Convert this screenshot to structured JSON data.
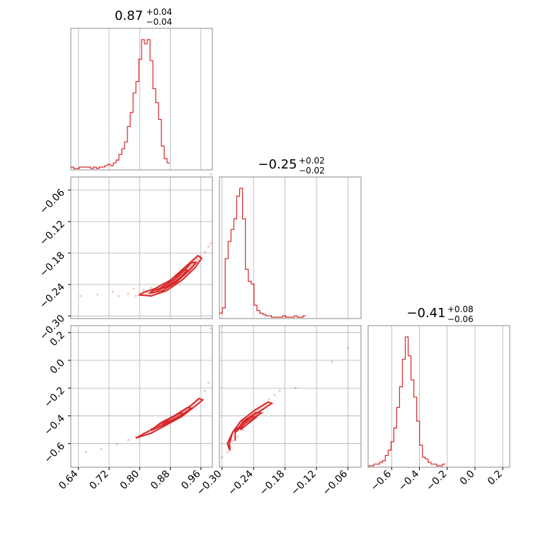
{
  "chart_data": {
    "type": "corner",
    "color": "#d62728",
    "grid": true,
    "parameters": [
      {
        "title": {
          "median": "0.87",
          "upper": "+0.04",
          "lower": "−0.04"
        },
        "range": [
          0.62,
          0.99
        ],
        "ticks": [
          0.64,
          0.72,
          0.8,
          0.88,
          0.96
        ],
        "tick_labels": [
          "0.64",
          "0.72",
          "0.80",
          "0.88",
          "0.96"
        ],
        "hist": {
          "edges_start": 0.62,
          "bin_width": 0.0074,
          "counts": [
            1,
            0,
            0,
            1,
            1,
            1,
            1,
            0,
            1,
            0,
            1,
            1,
            2,
            3,
            2,
            4,
            6,
            10,
            14,
            19,
            30,
            40,
            54,
            62,
            78,
            92,
            89,
            92,
            77,
            57,
            47,
            35,
            16,
            7,
            4
          ]
        }
      },
      {
        "title": {
          "median": "−0.25",
          "upper": "+0.02",
          "lower": "−0.02"
        },
        "range": [
          -0.305,
          -0.035
        ],
        "ticks": [
          -0.3,
          -0.24,
          -0.18,
          -0.12,
          -0.06
        ],
        "tick_labels": [
          "−0.30",
          "−0.24",
          "−0.18",
          "−0.12",
          "−0.06"
        ],
        "hist": {
          "edges_start": -0.305,
          "bin_width": 0.0055,
          "counts": [
            3,
            7,
            44,
            57,
            66,
            74,
            91,
            97,
            74,
            36,
            27,
            25,
            9,
            5,
            3,
            2,
            1,
            1,
            0,
            0,
            0,
            0,
            1,
            0,
            0,
            0,
            1,
            0,
            0,
            1
          ]
        }
      },
      {
        "title": {
          "median": "−0.41",
          "upper": "+0.08",
          "lower": "−0.06"
        },
        "range": [
          -0.77,
          0.25
        ],
        "ticks": [
          -0.6,
          -0.4,
          -0.2,
          0.0,
          0.2
        ],
        "tick_labels": [
          "−0.6",
          "−0.4",
          "−0.2",
          "0.0",
          "0.2"
        ],
        "hist": {
          "edges_start": -0.77,
          "bin_width": 0.0206,
          "counts": [
            0,
            0,
            1,
            1,
            2,
            3,
            6,
            9,
            14,
            22,
            34,
            46,
            62,
            75,
            64,
            50,
            40,
            26,
            12,
            5,
            4,
            2,
            1,
            1,
            0,
            0,
            1
          ]
        }
      }
    ],
    "scatter_2d": [
      {
        "panel": "param1 vs param0",
        "samples": [
          [
            0.645,
            -0.262
          ],
          [
            0.69,
            -0.259
          ],
          [
            0.73,
            -0.254
          ],
          [
            0.745,
            -0.262
          ],
          [
            0.77,
            -0.258
          ],
          [
            0.785,
            -0.248
          ],
          [
            0.79,
            -0.262
          ],
          [
            0.8,
            -0.257
          ],
          [
            0.81,
            -0.25
          ],
          [
            0.82,
            -0.258
          ],
          [
            0.83,
            -0.246
          ],
          [
            0.84,
            -0.252
          ],
          [
            0.85,
            -0.243
          ],
          [
            0.86,
            -0.238
          ],
          [
            0.87,
            -0.24
          ],
          [
            0.88,
            -0.232
          ],
          [
            0.89,
            -0.228
          ],
          [
            0.9,
            -0.222
          ],
          [
            0.91,
            -0.216
          ],
          [
            0.92,
            -0.212
          ],
          [
            0.93,
            -0.205
          ],
          [
            0.94,
            -0.198
          ],
          [
            0.95,
            -0.192
          ],
          [
            0.96,
            -0.186
          ],
          [
            0.97,
            -0.178
          ],
          [
            0.98,
            -0.168
          ],
          [
            0.985,
            -0.162
          ],
          [
            0.987,
            -0.03
          ]
        ],
        "contours": [
          [
            [
              0.8,
              -0.26
            ],
            [
              0.83,
              -0.262
            ],
            [
              0.87,
              -0.252
            ],
            [
              0.91,
              -0.232
            ],
            [
              0.945,
              -0.208
            ],
            [
              0.962,
              -0.19
            ],
            [
              0.952,
              -0.185
            ],
            [
              0.92,
              -0.206
            ],
            [
              0.88,
              -0.232
            ],
            [
              0.84,
              -0.248
            ],
            [
              0.81,
              -0.255
            ],
            [
              0.8,
              -0.26
            ]
          ],
          [
            [
              0.825,
              -0.257
            ],
            [
              0.86,
              -0.252
            ],
            [
              0.895,
              -0.236
            ],
            [
              0.93,
              -0.213
            ],
            [
              0.948,
              -0.198
            ],
            [
              0.935,
              -0.198
            ],
            [
              0.905,
              -0.222
            ],
            [
              0.87,
              -0.243
            ],
            [
              0.835,
              -0.252
            ],
            [
              0.825,
              -0.257
            ]
          ],
          [
            [
              0.845,
              -0.251
            ],
            [
              0.875,
              -0.243
            ],
            [
              0.905,
              -0.228
            ],
            [
              0.925,
              -0.213
            ],
            [
              0.914,
              -0.212
            ],
            [
              0.89,
              -0.23
            ],
            [
              0.86,
              -0.244
            ],
            [
              0.845,
              -0.251
            ]
          ]
        ]
      },
      {
        "panel": "param2 vs param0",
        "samples": [
          [
            0.66,
            -0.66
          ],
          [
            0.7,
            -0.64
          ],
          [
            0.74,
            -0.605
          ],
          [
            0.77,
            -0.575
          ],
          [
            0.79,
            -0.55
          ],
          [
            0.81,
            -0.52
          ],
          [
            0.83,
            -0.49
          ],
          [
            0.85,
            -0.46
          ],
          [
            0.87,
            -0.43
          ],
          [
            0.89,
            -0.4
          ],
          [
            0.91,
            -0.37
          ],
          [
            0.93,
            -0.33
          ],
          [
            0.95,
            -0.29
          ],
          [
            0.97,
            -0.22
          ],
          [
            0.98,
            -0.16
          ],
          [
            0.985,
            0.23
          ]
        ],
        "contours": [
          [
            [
              0.79,
              -0.56
            ],
            [
              0.83,
              -0.525
            ],
            [
              0.87,
              -0.465
            ],
            [
              0.91,
              -0.405
            ],
            [
              0.95,
              -0.32
            ],
            [
              0.965,
              -0.285
            ],
            [
              0.955,
              -0.275
            ],
            [
              0.93,
              -0.335
            ],
            [
              0.89,
              -0.405
            ],
            [
              0.85,
              -0.47
            ],
            [
              0.81,
              -0.53
            ],
            [
              0.79,
              -0.56
            ]
          ],
          [
            [
              0.83,
              -0.505
            ],
            [
              0.87,
              -0.455
            ],
            [
              0.91,
              -0.395
            ],
            [
              0.935,
              -0.345
            ],
            [
              0.925,
              -0.34
            ],
            [
              0.89,
              -0.4
            ],
            [
              0.855,
              -0.45
            ],
            [
              0.83,
              -0.505
            ]
          ],
          [
            [
              0.86,
              -0.46
            ],
            [
              0.89,
              -0.425
            ],
            [
              0.915,
              -0.385
            ],
            [
              0.905,
              -0.38
            ],
            [
              0.88,
              -0.415
            ],
            [
              0.86,
              -0.46
            ]
          ]
        ]
      },
      {
        "panel": "param2 vs param1",
        "samples": [
          [
            -0.3,
            -0.7
          ],
          [
            -0.29,
            -0.66
          ],
          [
            -0.285,
            -0.62
          ],
          [
            -0.28,
            -0.58
          ],
          [
            -0.27,
            -0.55
          ],
          [
            -0.26,
            -0.5
          ],
          [
            -0.25,
            -0.45
          ],
          [
            -0.24,
            -0.4
          ],
          [
            -0.23,
            -0.36
          ],
          [
            -0.22,
            -0.32
          ],
          [
            -0.21,
            -0.28
          ],
          [
            -0.2,
            -0.25
          ],
          [
            -0.19,
            -0.22
          ],
          [
            -0.16,
            -0.2
          ],
          [
            -0.09,
            -0.01
          ],
          [
            -0.06,
            0.09
          ]
        ],
        "contours": [
          [
            [
              -0.285,
              -0.65
            ],
            [
              -0.29,
              -0.6
            ],
            [
              -0.28,
              -0.52
            ],
            [
              -0.255,
              -0.44
            ],
            [
              -0.225,
              -0.36
            ],
            [
              -0.205,
              -0.31
            ],
            [
              -0.212,
              -0.3
            ],
            [
              -0.238,
              -0.36
            ],
            [
              -0.265,
              -0.44
            ],
            [
              -0.28,
              -0.52
            ],
            [
              -0.286,
              -0.6
            ],
            [
              -0.285,
              -0.65
            ]
          ],
          [
            [
              -0.275,
              -0.58
            ],
            [
              -0.275,
              -0.52
            ],
            [
              -0.255,
              -0.45
            ],
            [
              -0.225,
              -0.38
            ],
            [
              -0.235,
              -0.375
            ],
            [
              -0.26,
              -0.44
            ],
            [
              -0.275,
              -0.52
            ],
            [
              -0.275,
              -0.58
            ]
          ],
          [
            [
              -0.265,
              -0.5
            ],
            [
              -0.25,
              -0.455
            ],
            [
              -0.235,
              -0.41
            ],
            [
              -0.245,
              -0.405
            ],
            [
              -0.258,
              -0.45
            ],
            [
              -0.265,
              -0.5
            ]
          ]
        ]
      }
    ]
  }
}
